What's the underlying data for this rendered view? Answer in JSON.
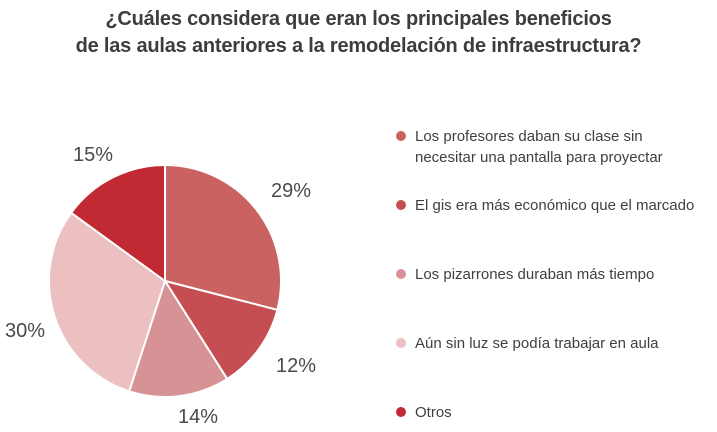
{
  "header": {
    "title_line1": "¿Cuáles considera que eran los principales beneficios",
    "title_line2": "de las aulas anteriores a la remodelación de infraestructura?"
  },
  "chart_data": {
    "type": "pie",
    "title": "¿Cuáles considera que eran los principales beneficios de las aulas anteriores a la remodelación de infraestructura?",
    "legend_position": "right",
    "start_angle_deg": 0,
    "direction": "clockwise",
    "separator_color": "#ffffff",
    "background_color": "#ffffff",
    "slices": [
      {
        "label": "Los profesores daban su clase sin necesitar una pantalla para proyectar",
        "value": 29,
        "pct_label": "29%",
        "color": "#c96260"
      },
      {
        "label": "El gis era más económico que el marcado",
        "value": 12,
        "pct_label": "12%",
        "color": "#c54e52"
      },
      {
        "label": "Los pizarrones duraban más tiempo",
        "value": 14,
        "pct_label": "14%",
        "color": "#d79296"
      },
      {
        "label": "Aún sin luz se podía trabajar en aula",
        "value": 30,
        "pct_label": "30%",
        "color": "#ecbfc1"
      },
      {
        "label": "Otros",
        "value": 15,
        "pct_label": "15%",
        "color": "#c12a32"
      }
    ]
  }
}
